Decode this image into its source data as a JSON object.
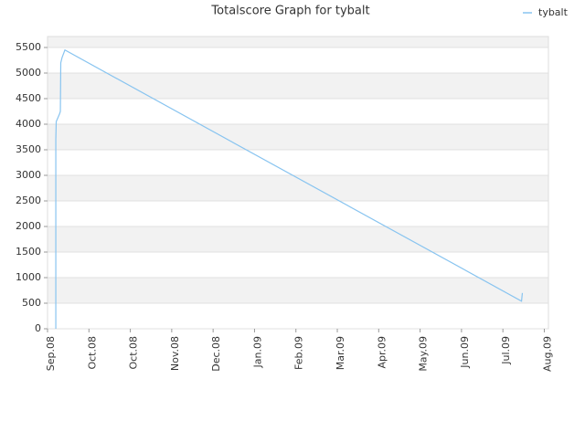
{
  "chart_data": {
    "type": "line",
    "title": "Totalscore Graph for tybalt",
    "x": [
      0.2,
      0.2,
      0.21,
      0.29,
      0.31,
      0.32,
      0.35,
      0.42,
      11.45,
      11.47
    ],
    "series": [
      {
        "name": "tybalt",
        "color": "#88c4f0",
        "values": [
          0,
          3700,
          4050,
          4200,
          4250,
          5200,
          5300,
          5450,
          540,
          700
        ]
      }
    ],
    "xlim": [
      0,
      12.1
    ],
    "xticks": [
      {
        "value": 0,
        "label": "Sep.08"
      },
      {
        "value": 1,
        "label": "Oct.08"
      },
      {
        "value": 2,
        "label": "Oct.08"
      },
      {
        "value": 3,
        "label": "Nov.08"
      },
      {
        "value": 4,
        "label": "Dec.08"
      },
      {
        "value": 5,
        "label": "Jan.09"
      },
      {
        "value": 6,
        "label": "Feb.09"
      },
      {
        "value": 7,
        "label": "Mar.09"
      },
      {
        "value": 8,
        "label": "Apr.09"
      },
      {
        "value": 9,
        "label": "May.09"
      },
      {
        "value": 10,
        "label": "Jun.09"
      },
      {
        "value": 11,
        "label": "Jul.09"
      },
      {
        "value": 12,
        "label": "Aug.09"
      }
    ],
    "ylim": [
      0,
      5714
    ],
    "yticks": [
      0,
      500,
      1000,
      1500,
      2000,
      2500,
      3000,
      3500,
      4000,
      4500,
      5000,
      5500
    ],
    "grid": true,
    "legend": "top-right"
  }
}
